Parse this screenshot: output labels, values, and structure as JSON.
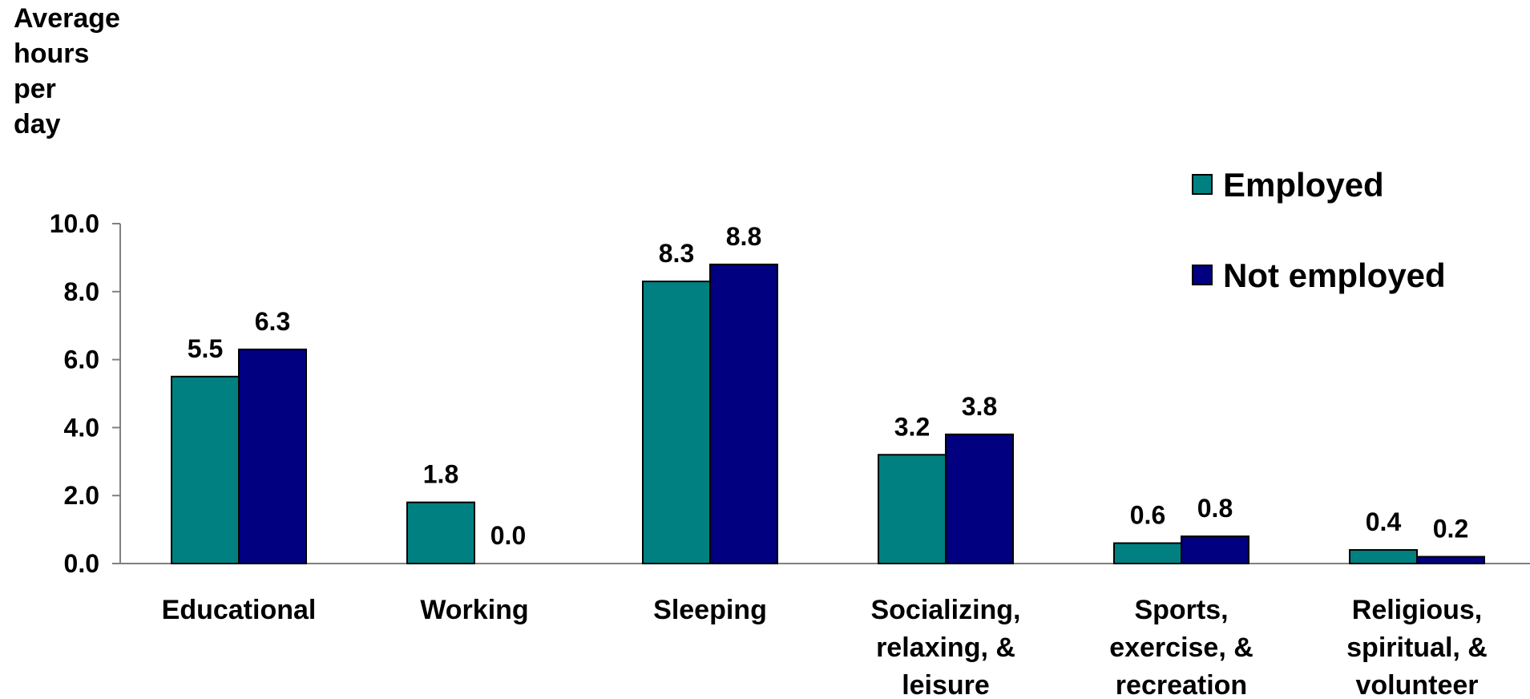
{
  "chart_data": {
    "type": "bar",
    "ylabel": "Average hours per day",
    "ylabel_lines": [
      "Average",
      "hours",
      "per",
      "day"
    ],
    "ylim": [
      0,
      10
    ],
    "yticks": [
      "0.0",
      "2.0",
      "4.0",
      "6.0",
      "8.0",
      "10.0"
    ],
    "categories": [
      [
        "Educational"
      ],
      [
        "Working"
      ],
      [
        "Sleeping"
      ],
      [
        "Socializing,",
        "relaxing, &",
        "leisure"
      ],
      [
        "Sports,",
        "exercise, &",
        "recreation"
      ],
      [
        "Religious,",
        "spiritual, &",
        "volunteer"
      ]
    ],
    "series": [
      {
        "name": "Employed",
        "color": "#008080",
        "values": [
          5.5,
          1.8,
          8.3,
          3.2,
          0.6,
          0.4
        ],
        "labels": [
          "5.5",
          "1.8",
          "8.3",
          "3.2",
          "0.6",
          "0.4"
        ]
      },
      {
        "name": "Not employed",
        "color": "#000080",
        "values": [
          6.3,
          0.0,
          8.8,
          3.8,
          0.8,
          0.2
        ],
        "labels": [
          "6.3",
          "0.0",
          "8.8",
          "3.8",
          "0.8",
          "0.2"
        ]
      }
    ],
    "legend_position": "top-right",
    "grid": false
  }
}
